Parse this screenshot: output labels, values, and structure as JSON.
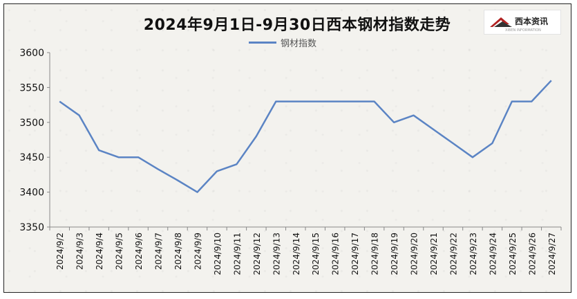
{
  "logo": {
    "text": "西本资讯",
    "subtext": "XIBEN INFORMATION",
    "accent_color": "#b22222"
  },
  "chart_data": {
    "type": "line",
    "title": "2024年9月1日-9月30日西本钢材指数走势",
    "series": [
      {
        "name": "钢材指数",
        "color": "#5b84c4",
        "values": [
          3530,
          3510,
          3460,
          3450,
          3450,
          3433,
          3417,
          3400,
          3430,
          3440,
          3480,
          3530,
          3530,
          3530,
          3530,
          3530,
          3530,
          3500,
          3510,
          3490,
          3470,
          3450,
          3470,
          3530,
          3530,
          3560
        ]
      }
    ],
    "categories": [
      "2024/9/2",
      "2024/9/3",
      "2024/9/4",
      "2024/9/5",
      "2024/9/6",
      "2024/9/7",
      "2024/9/8",
      "2024/9/9",
      "2024/9/10",
      "2024/9/11",
      "2024/9/12",
      "2024/9/13",
      "2024/9/14",
      "2024/9/15",
      "2024/9/16",
      "2024/9/17",
      "2024/9/18",
      "2024/9/19",
      "2024/9/20",
      "2024/9/21",
      "2024/9/22",
      "2024/9/23",
      "2024/9/24",
      "2024/9/25",
      "2024/9/26",
      "2024/9/27"
    ],
    "drop_lines_at": [
      "2024/9/2",
      "2024/9/3",
      "2024/9/4",
      "2024/9/5",
      "2024/9/6",
      "2024/9/9",
      "2024/9/10",
      "2024/9/11",
      "2024/9/12",
      "2024/9/13",
      "2024/9/14",
      "2024/9/18",
      "2024/9/19",
      "2024/9/20",
      "2024/9/23",
      "2024/9/24",
      "2024/9/25",
      "2024/9/26",
      "2024/9/27"
    ],
    "ylim": [
      3350,
      3600
    ],
    "yticks": [
      3350,
      3400,
      3450,
      3500,
      3550,
      3600
    ],
    "xlabel": "",
    "ylabel": "",
    "grid": false,
    "legend_position": "top-center",
    "axis_color": "#888888",
    "text_color": "#111111"
  }
}
